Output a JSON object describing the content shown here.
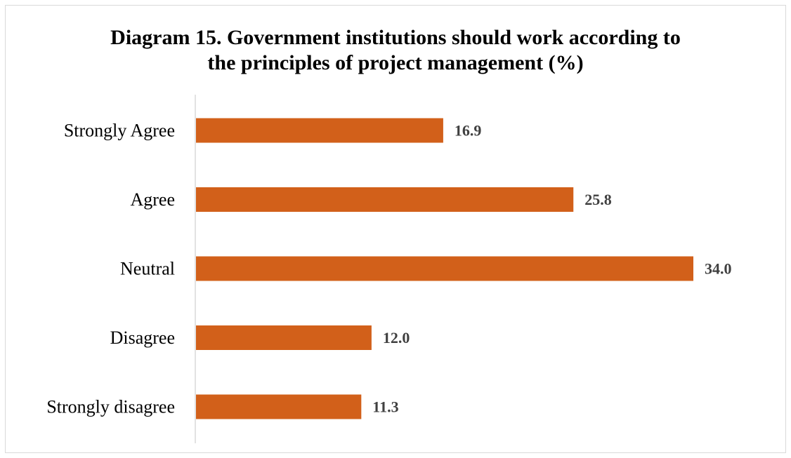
{
  "chart_data": {
    "type": "bar",
    "orientation": "horizontal",
    "title_lines": [
      "Diagram 15. Government institutions should work according to",
      "the principles of project management (%)"
    ],
    "categories": [
      "Strongly Agree",
      "Agree",
      "Neutral",
      "Disagree",
      "Strongly disagree"
    ],
    "values": [
      16.9,
      25.8,
      34.0,
      12.0,
      11.3
    ],
    "value_labels": [
      "16.9",
      "25.8",
      "34.0",
      "12.0",
      "11.3"
    ],
    "xlim": [
      0,
      34.0
    ],
    "grid": false,
    "legend": "none",
    "bar_color": "#D2601A",
    "axis_color": "#d9d9d9"
  }
}
